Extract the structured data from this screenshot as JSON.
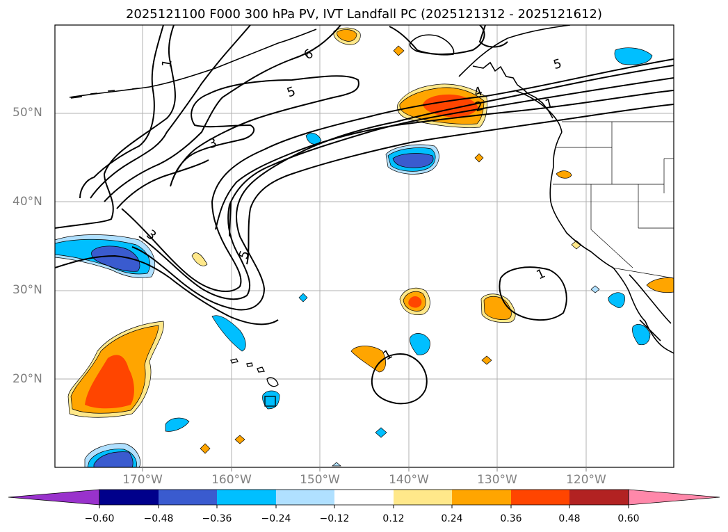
{
  "title": "2025121100 F000 300 hPa PV, IVT Landfall PC (2025121312 - 2025121612)",
  "map": {
    "lat_labels": [
      "50°N",
      "40°N",
      "30°N",
      "20°N"
    ],
    "lon_labels": [
      "170°W",
      "160°W",
      "150°W",
      "140°W",
      "130°W",
      "120°W"
    ],
    "pv_contour_labels": [
      "1",
      "6",
      "5",
      "3",
      "3",
      "5",
      "4",
      "2",
      "1",
      "5",
      "1",
      "1"
    ]
  },
  "colorbar": {
    "tick_labels": [
      "−0.60",
      "−0.48",
      "−0.36",
      "−0.24",
      "−0.12",
      "0.12",
      "0.24",
      "0.36",
      "0.48",
      "0.60"
    ],
    "colors": [
      "#9932cc",
      "#00008b",
      "#3a5bcf",
      "#00bfff",
      "#b0e0ff",
      "#ffffff",
      "#ffe88a",
      "#ffa500",
      "#ff4500",
      "#b22222",
      "#ff88aa"
    ]
  }
}
